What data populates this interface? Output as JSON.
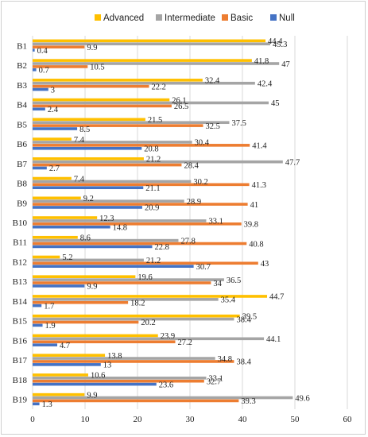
{
  "chart_data": {
    "type": "bar",
    "orientation": "horizontal",
    "categories": [
      "B1",
      "B2",
      "B3",
      "B4",
      "B5",
      "B6",
      "B7",
      "B8",
      "B9",
      "B10",
      "B11",
      "B12",
      "B13",
      "B14",
      "B15",
      "B16",
      "B17",
      "B18",
      "B19"
    ],
    "series": [
      {
        "name": "Advanced",
        "color": "#ffc000",
        "values": [
          44.4,
          41.8,
          32.4,
          26.1,
          21.5,
          7.4,
          21.2,
          7.4,
          9.2,
          12.3,
          8.6,
          5.2,
          19.6,
          44.7,
          39.5,
          23.9,
          13.8,
          10.6,
          9.9
        ]
      },
      {
        "name": "Intermediate",
        "color": "#a5a5a5",
        "values": [
          45.3,
          47,
          42.4,
          45,
          37.5,
          30.4,
          47.7,
          30.2,
          28.9,
          33.1,
          27.8,
          21.2,
          36.5,
          35.4,
          38.4,
          44.1,
          34.8,
          33.1,
          49.6
        ]
      },
      {
        "name": "Basic",
        "color": "#ed7d31",
        "values": [
          9.9,
          10.5,
          22.2,
          26.5,
          32.5,
          41.4,
          28.4,
          41.3,
          41,
          39.8,
          40.8,
          43,
          34,
          18.2,
          20.2,
          27.2,
          38.4,
          32.7,
          39.3
        ]
      },
      {
        "name": "Null",
        "color": "#4472c4",
        "values": [
          0.4,
          0.7,
          3,
          2.4,
          8.5,
          20.8,
          2.7,
          21.1,
          20.9,
          14.8,
          22.8,
          30.7,
          9.9,
          1.7,
          1.9,
          4.7,
          13,
          23.6,
          1.3
        ]
      }
    ],
    "xlim": [
      0,
      60
    ],
    "xticks": [
      0,
      10,
      20,
      30,
      40,
      50,
      60
    ],
    "grid": true,
    "legend_position": "top"
  }
}
